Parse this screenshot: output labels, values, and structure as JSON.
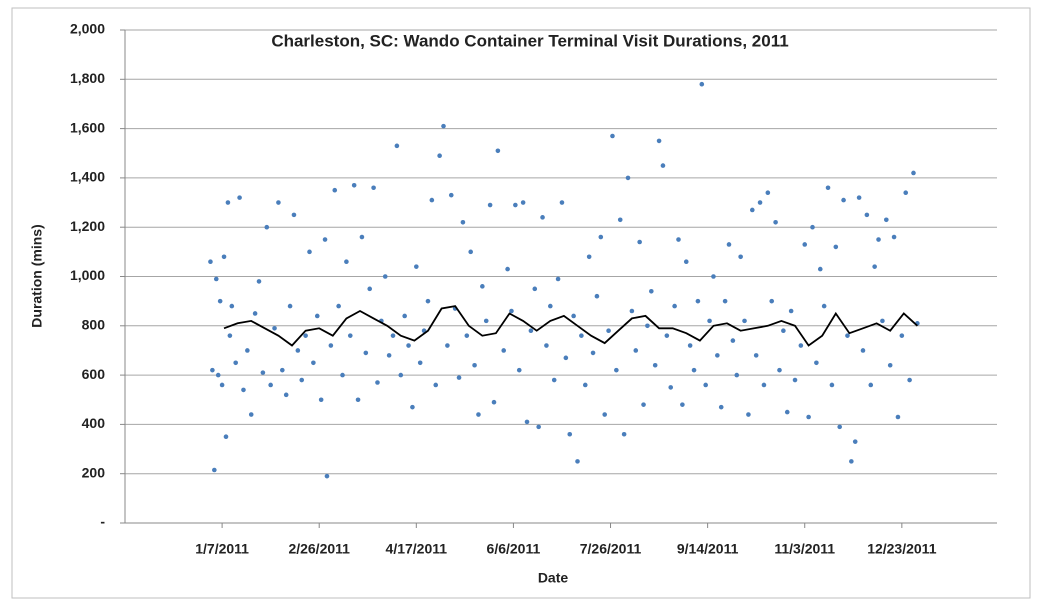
{
  "chart_data": {
    "type": "scatter",
    "title": "Charleston, SC: Wando Container Terminal Visit Durations, 2011",
    "xlabel": "Date",
    "ylabel": "Duration (mins)",
    "xlim": [
      "11/18/2010",
      "2/10/2012"
    ],
    "xticks": [
      "1/7/2011",
      "2/26/2011",
      "4/17/2011",
      "6/6/2011",
      "7/26/2011",
      "9/14/2011",
      "11/3/2011",
      "12/23/2011"
    ],
    "ylim": [
      0,
      2000
    ],
    "yticks": [
      {
        "value": 0,
        "label": "-"
      },
      200,
      400,
      600,
      800,
      {
        "value": 1000,
        "label": "1,000"
      },
      {
        "value": 1200,
        "label": "1,200"
      },
      {
        "value": 1400,
        "label": "1,400"
      },
      {
        "value": 1600,
        "label": "1,600"
      },
      {
        "value": 1800,
        "label": "1,800"
      },
      {
        "value": 2000,
        "label": "2,000"
      }
    ],
    "grid": true,
    "series": [
      {
        "type": "scatter",
        "color": "#4a7ebb",
        "x": [
          "1/1/2011",
          "1/2/2011",
          "1/3/2011",
          "1/4/2011",
          "1/5/2011",
          "1/6/2011",
          "1/7/2011",
          "1/8/2011",
          "1/9/2011",
          "1/10/2011",
          "1/11/2011",
          "1/12/2011",
          "1/14/2011",
          "1/16/2011",
          "1/18/2011",
          "1/20/2011",
          "1/22/2011",
          "1/24/2011",
          "1/26/2011",
          "1/28/2011",
          "1/30/2011",
          "2/1/2011",
          "2/3/2011",
          "2/5/2011",
          "2/7/2011",
          "2/9/2011",
          "2/11/2011",
          "2/13/2011",
          "2/15/2011",
          "2/17/2011",
          "2/19/2011",
          "2/21/2011",
          "2/23/2011",
          "2/25/2011",
          "2/27/2011",
          "3/1/2011",
          "3/2/2011",
          "3/4/2011",
          "3/6/2011",
          "3/8/2011",
          "3/10/2011",
          "3/12/2011",
          "3/14/2011",
          "3/16/2011",
          "3/18/2011",
          "3/20/2011",
          "3/22/2011",
          "3/24/2011",
          "3/26/2011",
          "3/28/2011",
          "3/30/2011",
          "4/1/2011",
          "4/3/2011",
          "4/5/2011",
          "4/7/2011",
          "4/9/2011",
          "4/11/2011",
          "4/13/2011",
          "4/15/2011",
          "4/17/2011",
          "4/19/2011",
          "4/21/2011",
          "4/23/2011",
          "4/25/2011",
          "4/27/2011",
          "4/29/2011",
          "5/1/2011",
          "5/3/2011",
          "5/5/2011",
          "5/7/2011",
          "5/9/2011",
          "5/11/2011",
          "5/13/2011",
          "5/15/2011",
          "5/17/2011",
          "5/19/2011",
          "5/21/2011",
          "5/23/2011",
          "5/25/2011",
          "5/27/2011",
          "5/29/2011",
          "6/1/2011",
          "6/3/2011",
          "6/5/2011",
          "6/7/2011",
          "6/9/2011",
          "6/11/2011",
          "6/13/2011",
          "6/15/2011",
          "6/17/2011",
          "6/19/2011",
          "6/21/2011",
          "6/23/2011",
          "6/25/2011",
          "6/27/2011",
          "6/29/2011",
          "7/1/2011",
          "7/3/2011",
          "7/5/2011",
          "7/7/2011",
          "7/9/2011",
          "7/11/2011",
          "7/13/2011",
          "7/15/2011",
          "7/17/2011",
          "7/19/2011",
          "7/21/2011",
          "7/23/2011",
          "7/25/2011",
          "7/27/2011",
          "7/29/2011",
          "7/31/2011",
          "8/2/2011",
          "8/4/2011",
          "8/6/2011",
          "8/8/2011",
          "8/10/2011",
          "8/12/2011",
          "8/14/2011",
          "8/16/2011",
          "8/18/2011",
          "8/20/2011",
          "8/22/2011",
          "8/24/2011",
          "8/26/2011",
          "8/28/2011",
          "8/30/2011",
          "9/1/2011",
          "9/3/2011",
          "9/5/2011",
          "9/7/2011",
          "9/9/2011",
          "9/11/2011",
          "9/13/2011",
          "9/15/2011",
          "9/17/2011",
          "9/19/2011",
          "9/21/2011",
          "9/23/2011",
          "9/25/2011",
          "9/27/2011",
          "9/29/2011",
          "10/1/2011",
          "10/3/2011",
          "10/5/2011",
          "10/7/2011",
          "10/9/2011",
          "10/11/2011",
          "10/13/2011",
          "10/15/2011",
          "10/17/2011",
          "10/19/2011",
          "10/21/2011",
          "10/23/2011",
          "10/25/2011",
          "10/27/2011",
          "10/29/2011",
          "11/1/2011",
          "11/3/2011",
          "11/5/2011",
          "11/7/2011",
          "11/9/2011",
          "11/11/2011",
          "11/13/2011",
          "11/15/2011",
          "11/17/2011",
          "11/19/2011",
          "11/21/2011",
          "11/23/2011",
          "11/25/2011",
          "11/27/2011",
          "11/29/2011",
          "12/1/2011",
          "12/3/2011",
          "12/5/2011",
          "12/7/2011",
          "12/9/2011",
          "12/11/2011",
          "12/13/2011",
          "12/15/2011",
          "12/17/2011",
          "12/19/2011",
          "12/21/2011",
          "12/23/2011",
          "12/25/2011",
          "12/27/2011",
          "12/29/2011",
          "12/31/2011"
        ],
        "values": [
          1060,
          620,
          215,
          990,
          600,
          900,
          560,
          1080,
          350,
          1300,
          760,
          880,
          650,
          1320,
          540,
          700,
          440,
          850,
          980,
          610,
          1200,
          560,
          790,
          1300,
          620,
          520,
          880,
          1250,
          700,
          580,
          760,
          1100,
          650,
          840,
          500,
          1150,
          190,
          720,
          1350,
          880,
          600,
          1060,
          760,
          1370,
          500,
          1160,
          690,
          950,
          1360,
          570,
          820,
          1000,
          680,
          760,
          1530,
          600,
          840,
          720,
          470,
          1040,
          650,
          780,
          900,
          1310,
          560,
          1490,
          1610,
          720,
          1330,
          870,
          590,
          1220,
          760,
          1100,
          640,
          440,
          960,
          820,
          1290,
          490,
          1510,
          700,
          1030,
          860,
          1290,
          620,
          1300,
          410,
          780,
          950,
          390,
          1240,
          720,
          880,
          580,
          990,
          1300,
          670,
          360,
          840,
          250,
          760,
          560,
          1080,
          690,
          920,
          1160,
          440,
          780,
          1570,
          620,
          1230,
          360,
          1400,
          860,
          700,
          1140,
          480,
          800,
          940,
          640,
          1550,
          1450,
          760,
          550,
          880,
          1150,
          480,
          1060,
          720,
          620,
          900,
          1780,
          560,
          820,
          1000,
          680,
          470,
          900,
          1130,
          740,
          600,
          1080,
          820,
          440,
          1270,
          680,
          1300,
          560,
          1340,
          900,
          1220,
          620,
          780,
          450,
          860,
          580,
          720,
          1130,
          430,
          1200,
          650,
          1030,
          880,
          1360,
          560,
          1120,
          390,
          1310,
          760,
          250,
          330,
          1320,
          700,
          1250,
          560,
          1040,
          1150,
          820,
          1230,
          640,
          1160,
          430,
          760,
          1340,
          580,
          1420,
          810
        ]
      },
      {
        "type": "line",
        "color": "#000000",
        "x": [
          "1/8/2011",
          "1/15/2011",
          "1/22/2011",
          "1/29/2011",
          "2/5/2011",
          "2/12/2011",
          "2/19/2011",
          "2/26/2011",
          "3/5/2011",
          "3/12/2011",
          "3/19/2011",
          "3/26/2011",
          "4/2/2011",
          "4/9/2011",
          "4/16/2011",
          "4/23/2011",
          "4/30/2011",
          "5/7/2011",
          "5/14/2011",
          "5/21/2011",
          "5/28/2011",
          "6/4/2011",
          "6/11/2011",
          "6/18/2011",
          "6/25/2011",
          "7/2/2011",
          "7/9/2011",
          "7/16/2011",
          "7/23/2011",
          "7/30/2011",
          "8/6/2011",
          "8/13/2011",
          "8/20/2011",
          "8/27/2011",
          "9/3/2011",
          "9/10/2011",
          "9/17/2011",
          "9/24/2011",
          "10/1/2011",
          "10/8/2011",
          "10/15/2011",
          "10/22/2011",
          "10/29/2011",
          "11/5/2011",
          "11/12/2011",
          "11/19/2011",
          "11/26/2011",
          "12/3/2011",
          "12/10/2011",
          "12/17/2011",
          "12/24/2011",
          "12/31/2011"
        ],
        "values": [
          790,
          810,
          820,
          790,
          760,
          720,
          780,
          790,
          760,
          830,
          860,
          830,
          800,
          760,
          740,
          780,
          870,
          880,
          800,
          760,
          770,
          850,
          820,
          780,
          820,
          840,
          800,
          760,
          730,
          780,
          830,
          840,
          790,
          790,
          770,
          740,
          800,
          810,
          780,
          790,
          800,
          820,
          800,
          720,
          760,
          850,
          770,
          790,
          810,
          780,
          850,
          800
        ]
      }
    ]
  }
}
